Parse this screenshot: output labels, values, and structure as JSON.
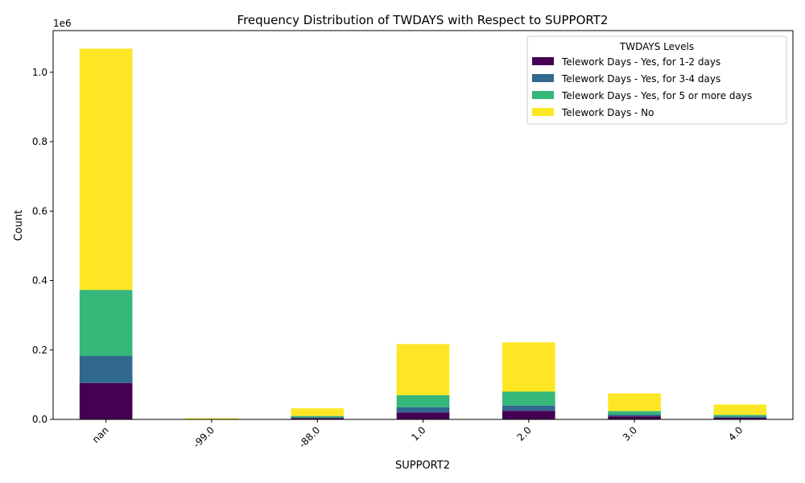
{
  "chart_data": {
    "type": "bar",
    "stacked": true,
    "title": "Frequency Distribution of TWDAYS with Respect to SUPPORT2",
    "xlabel": "SUPPORT2",
    "ylabel": "Count",
    "y_offset_label": "1e6",
    "ylim": [
      0,
      1120000
    ],
    "yticks": [
      0,
      200000,
      400000,
      600000,
      800000,
      1000000
    ],
    "ytick_labels": [
      "0.0",
      "0.2",
      "0.4",
      "0.6",
      "0.8",
      "1.0"
    ],
    "categories": [
      "nan",
      "-99.0",
      "-88.0",
      "1.0",
      "2.0",
      "3.0",
      "4.0"
    ],
    "legend": {
      "title": "TWDAYS Levels",
      "placement": "top-right"
    },
    "grid": false,
    "series": [
      {
        "name": "Telework Days - Yes, for 1-2 days",
        "color": "#440154",
        "values": [
          105000,
          500,
          4000,
          20000,
          25000,
          9000,
          5000
        ]
      },
      {
        "name": "Telework Days - Yes, for 3-4 days",
        "color": "#31688e",
        "values": [
          78000,
          300,
          2000,
          15000,
          15000,
          5000,
          3000
        ]
      },
      {
        "name": "Telework Days - Yes, for 5 or more days",
        "color": "#35b779",
        "values": [
          190000,
          400,
          4000,
          35000,
          40000,
          10000,
          5000
        ]
      },
      {
        "name": "Telework Days - No",
        "color": "#fde725",
        "values": [
          695000,
          2300,
          22000,
          147000,
          142000,
          51000,
          30000
        ]
      }
    ]
  }
}
